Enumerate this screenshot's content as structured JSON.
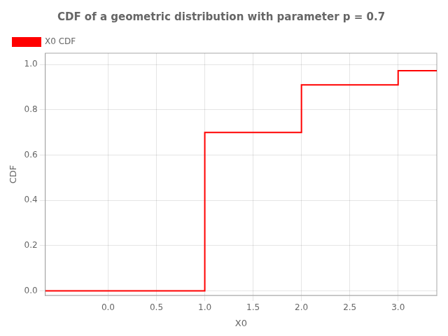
{
  "chart_data": {
    "type": "line",
    "title": "CDF of a geometric distribution with parameter p = 0.7",
    "xlabel": "X0",
    "ylabel": "CDF",
    "x": [
      -0.65,
      1.0,
      1.0,
      2.0,
      2.0,
      3.0,
      3.0,
      3.4
    ],
    "series": [
      {
        "name": "X0 CDF",
        "color": "red",
        "values": [
          0.0,
          0.0,
          0.7,
          0.7,
          0.91,
          0.91,
          0.973,
          0.973
        ]
      }
    ],
    "xlim": [
      -0.65,
      3.4
    ],
    "ylim": [
      -0.02,
      1.05
    ],
    "xticks": [
      {
        "value": 0.0,
        "label": "0.0"
      },
      0.5,
      {
        "value": 1.0,
        "label": "1.0"
      },
      1.5,
      {
        "value": 2.0,
        "label": "2.0"
      },
      2.5,
      {
        "value": 3.0,
        "label": "3.0"
      }
    ],
    "yticks": [
      {
        "value": 0.0,
        "label": "0.0"
      },
      0.2,
      0.4,
      0.6,
      0.8,
      {
        "value": 1.0,
        "label": "1.0"
      }
    ],
    "grid": true,
    "legend": "upper left"
  }
}
